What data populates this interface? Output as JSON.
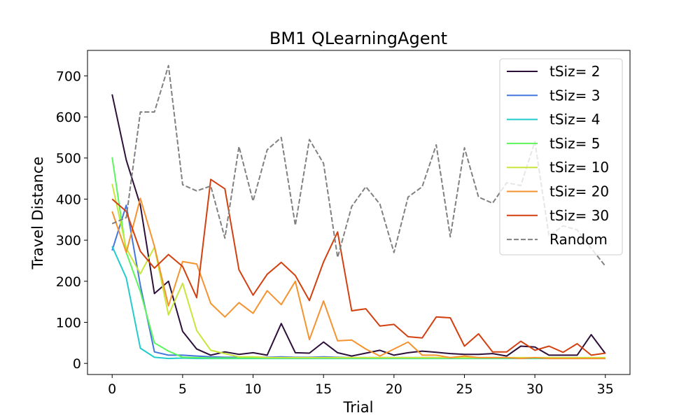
{
  "chart_data": {
    "type": "line",
    "title": "BM1  QLearningAgent",
    "xlabel": "Trial",
    "ylabel": "Travel Distance",
    "xlim": [
      -1.75,
      36.75
    ],
    "ylim": [
      -27,
      762
    ],
    "xticks": [
      0,
      5,
      10,
      15,
      20,
      25,
      30,
      35
    ],
    "yticks": [
      0,
      100,
      200,
      300,
      400,
      500,
      600,
      700
    ],
    "grid": false,
    "legend_position": "top-right",
    "x": [
      0,
      1,
      2,
      3,
      4,
      5,
      6,
      7,
      8,
      9,
      10,
      11,
      12,
      13,
      14,
      15,
      16,
      17,
      18,
      19,
      20,
      21,
      22,
      23,
      24,
      25,
      26,
      27,
      28,
      29,
      30,
      31,
      32,
      33,
      34,
      35
    ],
    "series": [
      {
        "name": "tSiz= 2",
        "color": "#2d0f3a",
        "dash": "solid",
        "values": [
          655,
          495,
          385,
          170,
          200,
          78,
          35,
          20,
          28,
          22,
          26,
          20,
          97,
          26,
          25,
          52,
          26,
          18,
          25,
          32,
          20,
          26,
          30,
          27,
          24,
          22,
          22,
          24,
          18,
          42,
          40,
          20,
          20,
          20,
          70,
          24
        ]
      },
      {
        "name": "tSiz= 3",
        "color": "#4477dd",
        "dash": "solid",
        "values": [
          275,
          385,
          190,
          28,
          20,
          20,
          18,
          16,
          15,
          15,
          15,
          15,
          16,
          15,
          15,
          16,
          15,
          14,
          14,
          14,
          14,
          14,
          14,
          14,
          13,
          13,
          13,
          13,
          13,
          13,
          13,
          13,
          13,
          13,
          13,
          13
        ]
      },
      {
        "name": "tSiz= 4",
        "color": "#22cccc",
        "dash": "solid",
        "values": [
          285,
          208,
          37,
          15,
          12,
          13,
          12,
          12,
          12,
          12,
          12,
          12,
          12,
          12,
          12,
          12,
          12,
          12,
          12,
          12,
          12,
          12,
          12,
          12,
          12,
          12,
          12,
          12,
          12,
          12,
          12,
          12,
          12,
          12,
          12,
          12
        ]
      },
      {
        "name": "tSiz= 5",
        "color": "#5cf55c",
        "dash": "solid",
        "values": [
          502,
          270,
          175,
          50,
          30,
          15,
          14,
          13,
          13,
          13,
          13,
          13,
          13,
          13,
          13,
          13,
          13,
          13,
          13,
          13,
          13,
          13,
          13,
          13,
          13,
          13,
          13,
          13,
          13,
          13,
          13,
          13,
          13,
          13,
          13,
          13
        ]
      },
      {
        "name": "tSiz= 10",
        "color": "#c8e63a",
        "dash": "solid",
        "values": [
          437,
          280,
          218,
          283,
          118,
          195,
          80,
          32,
          24,
          16,
          16,
          14,
          14,
          14,
          14,
          14,
          14,
          14,
          14,
          14,
          14,
          14,
          14,
          14,
          14,
          14,
          14,
          14,
          14,
          14,
          14,
          14,
          14,
          14,
          14,
          14
        ]
      },
      {
        "name": "tSiz= 20",
        "color": "#f5932f",
        "dash": "solid",
        "values": [
          370,
          270,
          402,
          285,
          140,
          248,
          242,
          146,
          113,
          148,
          122,
          177,
          143,
          200,
          58,
          152,
          55,
          57,
          35,
          18,
          35,
          52,
          20,
          20,
          14,
          18,
          14,
          14,
          14,
          12,
          14,
          12,
          12,
          12,
          12,
          12
        ]
      },
      {
        "name": "tSiz= 30",
        "color": "#d3400f",
        "dash": "solid",
        "values": [
          400,
          370,
          273,
          232,
          265,
          236,
          160,
          448,
          425,
          228,
          166,
          217,
          246,
          214,
          153,
          247,
          320,
          128,
          133,
          91,
          95,
          65,
          62,
          113,
          111,
          42,
          72,
          28,
          28,
          54,
          32,
          42,
          27,
          48,
          20,
          25
        ]
      },
      {
        "name": "Random",
        "color": "#808080",
        "dash": "dashed",
        "values": [
          340,
          355,
          612,
          612,
          725,
          435,
          420,
          432,
          305,
          528,
          395,
          520,
          550,
          336,
          545,
          487,
          258,
          382,
          430,
          388,
          270,
          405,
          430,
          532,
          308,
          525,
          405,
          390,
          440,
          433,
          540,
          310,
          335,
          325,
          280,
          237
        ]
      }
    ]
  }
}
